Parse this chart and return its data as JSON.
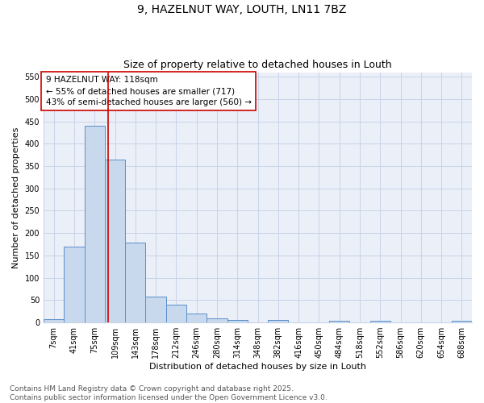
{
  "title_line1": "9, HAZELNUT WAY, LOUTH, LN11 7BZ",
  "title_line2": "Size of property relative to detached houses in Louth",
  "xlabel": "Distribution of detached houses by size in Louth",
  "ylabel": "Number of detached properties",
  "categories": [
    "7sqm",
    "41sqm",
    "75sqm",
    "109sqm",
    "143sqm",
    "178sqm",
    "212sqm",
    "246sqm",
    "280sqm",
    "314sqm",
    "348sqm",
    "382sqm",
    "416sqm",
    "450sqm",
    "484sqm",
    "518sqm",
    "552sqm",
    "586sqm",
    "620sqm",
    "654sqm",
    "688sqm"
  ],
  "values": [
    8,
    170,
    440,
    365,
    178,
    57,
    40,
    20,
    10,
    6,
    0,
    5,
    0,
    0,
    3,
    0,
    4,
    0,
    0,
    0,
    4
  ],
  "bar_color": "#c9d9ed",
  "bar_edge_color": "#5b8fc9",
  "annotation_text_line1": "9 HAZELNUT WAY: 118sqm",
  "annotation_text_line2": "← 55% of detached houses are smaller (717)",
  "annotation_text_line3": "43% of semi-detached houses are larger (560) →",
  "annotation_box_color": "#ffffff",
  "annotation_box_edge": "#cc0000",
  "vline_color": "#cc0000",
  "vline_x": 2.65,
  "ylim": [
    0,
    560
  ],
  "yticks": [
    0,
    50,
    100,
    150,
    200,
    250,
    300,
    350,
    400,
    450,
    500,
    550
  ],
  "grid_color": "#c8d4e8",
  "bg_color": "#eaeff8",
  "footnote": "Contains HM Land Registry data © Crown copyright and database right 2025.\nContains public sector information licensed under the Open Government Licence v3.0.",
  "title_fontsize": 10,
  "subtitle_fontsize": 9,
  "xlabel_fontsize": 8,
  "ylabel_fontsize": 8,
  "tick_fontsize": 7,
  "annotation_fontsize": 7.5,
  "footnote_fontsize": 6.5
}
